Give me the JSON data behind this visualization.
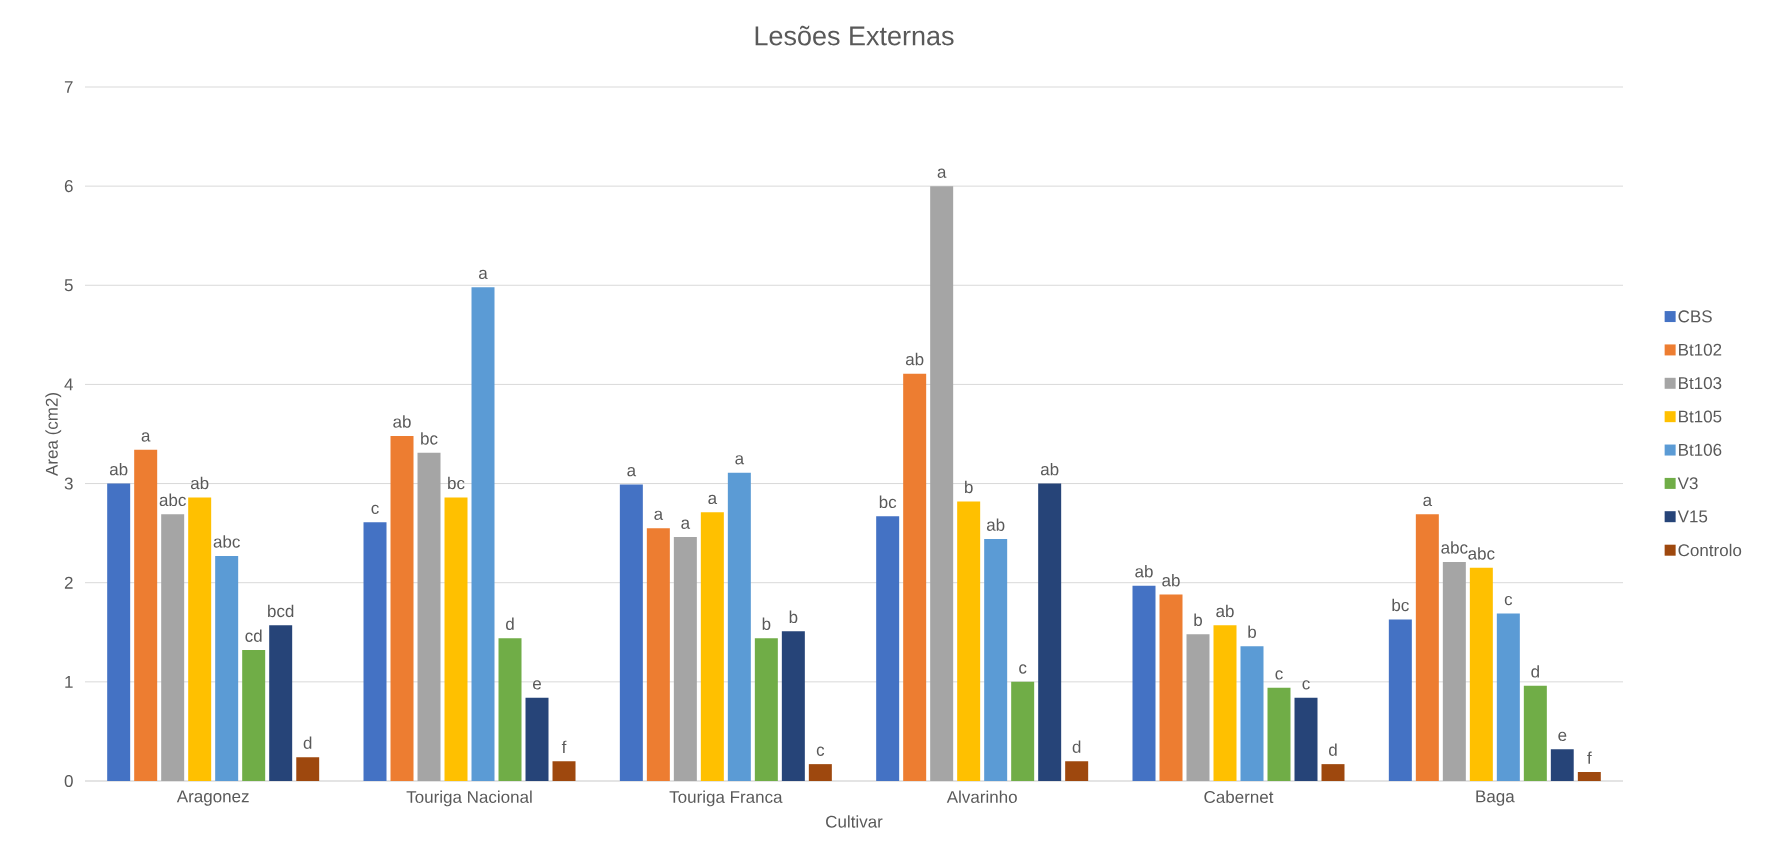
{
  "chart_data": {
    "type": "bar",
    "title": "Lesões Externas",
    "xlabel": "Cultivar",
    "ylabel": "Area (cm2)",
    "categories": [
      "Aragonez",
      "Touriga Nacional",
      "Touriga Franca",
      "Alvarinho",
      "Cabernet",
      "Baga"
    ],
    "series": [
      {
        "name": "CBS",
        "color": "#4472c4",
        "values": [
          3.0,
          2.61,
          2.99,
          2.67,
          1.97,
          1.63
        ],
        "value_labels": [
          "ab",
          "c",
          "a",
          "bc",
          "ab",
          "bc"
        ]
      },
      {
        "name": "Bt102",
        "color": "#ed7d31",
        "values": [
          3.34,
          3.48,
          2.55,
          4.11,
          1.88,
          2.69
        ],
        "value_labels": [
          "a",
          "ab",
          "a",
          "ab",
          "ab",
          "a"
        ]
      },
      {
        "name": "Bt103",
        "color": "#a5a5a5",
        "values": [
          2.69,
          3.31,
          2.46,
          6.0,
          1.48,
          2.21
        ],
        "value_labels": [
          "abc",
          "bc",
          "a",
          "a",
          "b",
          "abc"
        ]
      },
      {
        "name": "Bt105",
        "color": "#ffc000",
        "values": [
          2.86,
          2.86,
          2.71,
          2.82,
          1.57,
          2.15
        ],
        "value_labels": [
          "ab",
          "bc",
          "a",
          "b",
          "ab",
          "abc"
        ]
      },
      {
        "name": "Bt106",
        "color": "#5b9bd5",
        "values": [
          2.27,
          4.98,
          3.11,
          2.44,
          1.36,
          1.69
        ],
        "value_labels": [
          "abc",
          "a",
          "a",
          "ab",
          "b",
          "c"
        ]
      },
      {
        "name": "V3",
        "color": "#70ad47",
        "values": [
          1.32,
          1.44,
          1.44,
          1.0,
          0.94,
          0.96
        ],
        "value_labels": [
          "cd",
          "d",
          "b",
          "c",
          "c",
          "d"
        ]
      },
      {
        "name": "V15",
        "color": "#264478",
        "values": [
          1.57,
          0.84,
          1.51,
          3.0,
          0.84,
          0.32
        ],
        "value_labels": [
          "bcd",
          "e",
          "b",
          "ab",
          "c",
          "e"
        ]
      },
      {
        "name": "Controlo",
        "color": "#9e480e",
        "values": [
          0.24,
          0.2,
          0.17,
          0.2,
          0.17,
          0.09
        ],
        "value_labels": [
          "d",
          "f",
          "c",
          "d",
          "d",
          "f"
        ]
      }
    ],
    "ylim": [
      0,
      7
    ],
    "yticks": [
      0,
      1,
      2,
      3,
      4,
      5,
      6,
      7
    ],
    "grid": "y",
    "legend": "right"
  }
}
